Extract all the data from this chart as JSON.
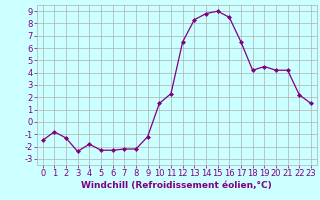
{
  "x": [
    0,
    1,
    2,
    3,
    4,
    5,
    6,
    7,
    8,
    9,
    10,
    11,
    12,
    13,
    14,
    15,
    16,
    17,
    18,
    19,
    20,
    21,
    22,
    23
  ],
  "y": [
    -1.5,
    -0.8,
    -1.3,
    -2.4,
    -1.8,
    -2.3,
    -2.3,
    -2.2,
    -2.2,
    -1.2,
    1.5,
    2.3,
    6.5,
    8.3,
    8.8,
    9.0,
    8.5,
    6.5,
    4.2,
    4.5,
    4.2,
    4.2,
    2.2,
    1.5
  ],
  "line_color": "#800080",
  "marker": "D",
  "marker_size": 2,
  "bg_color": "#ccffff",
  "grid_color": "#b0b0b0",
  "xlabel": "Windchill (Refroidissement éolien,°C)",
  "xlim": [
    -0.5,
    23.5
  ],
  "ylim": [
    -3.5,
    9.5
  ],
  "yticks": [
    -3,
    -2,
    -1,
    0,
    1,
    2,
    3,
    4,
    5,
    6,
    7,
    8,
    9
  ],
  "xticks": [
    0,
    1,
    2,
    3,
    4,
    5,
    6,
    7,
    8,
    9,
    10,
    11,
    12,
    13,
    14,
    15,
    16,
    17,
    18,
    19,
    20,
    21,
    22,
    23
  ],
  "label_color": "#800080",
  "tick_color": "#800080",
  "font_size_label": 6.5,
  "font_size_tick": 6.0
}
